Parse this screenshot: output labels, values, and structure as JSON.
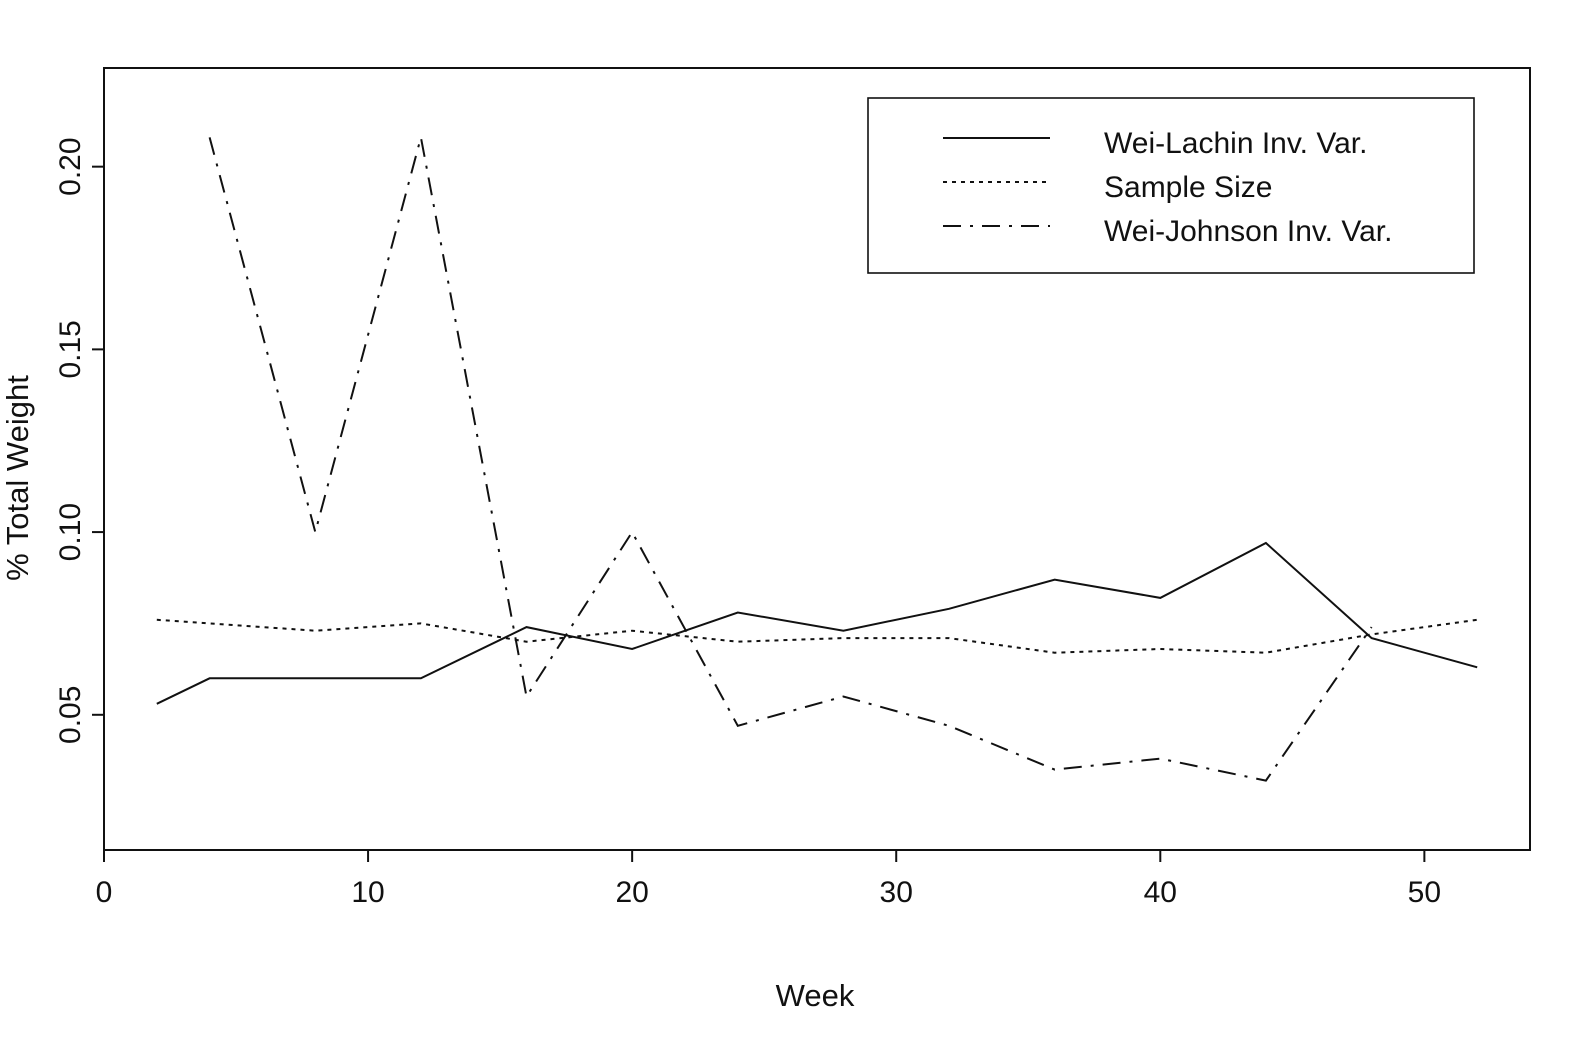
{
  "chart_data": {
    "type": "line",
    "title": "",
    "xlabel": "Week",
    "ylabel": "% Total Weight",
    "xlim": [
      0,
      54
    ],
    "ylim": [
      0.013,
      0.227
    ],
    "xticks": [
      0,
      10,
      20,
      30,
      40,
      50
    ],
    "yticks": [
      0.05,
      0.1,
      0.15,
      0.2
    ],
    "xtick_labels": [
      "0",
      "10",
      "20",
      "30",
      "40",
      "50"
    ],
    "ytick_labels": [
      "0.05",
      "0.10",
      "0.15",
      "0.20"
    ],
    "grid": false,
    "legend_position": "top-right",
    "series": [
      {
        "name": "Wei-Lachin Inv. Var.",
        "style": "solid",
        "x": [
          2,
          4,
          8,
          12,
          16,
          20,
          24,
          28,
          32,
          36,
          40,
          44,
          48,
          52
        ],
        "y": [
          0.053,
          0.06,
          0.06,
          0.06,
          0.074,
          0.068,
          0.078,
          0.073,
          0.079,
          0.087,
          0.082,
          0.097,
          0.071,
          0.063
        ]
      },
      {
        "name": "Sample Size",
        "style": "dotted",
        "x": [
          2,
          4,
          8,
          12,
          16,
          20,
          24,
          28,
          32,
          36,
          40,
          44,
          48,
          52
        ],
        "y": [
          0.076,
          0.075,
          0.073,
          0.075,
          0.07,
          0.073,
          0.07,
          0.071,
          0.071,
          0.067,
          0.068,
          0.067,
          0.072,
          0.076
        ]
      },
      {
        "name": "Wei-Johnson Inv. Var.",
        "style": "dashdot",
        "x": [
          4,
          8,
          12,
          16,
          20,
          24,
          28,
          32,
          36,
          40,
          44,
          48
        ],
        "y": [
          0.208,
          0.1,
          0.208,
          0.055,
          0.1,
          0.047,
          0.055,
          0.047,
          0.035,
          0.038,
          0.032,
          0.074
        ]
      }
    ]
  }
}
